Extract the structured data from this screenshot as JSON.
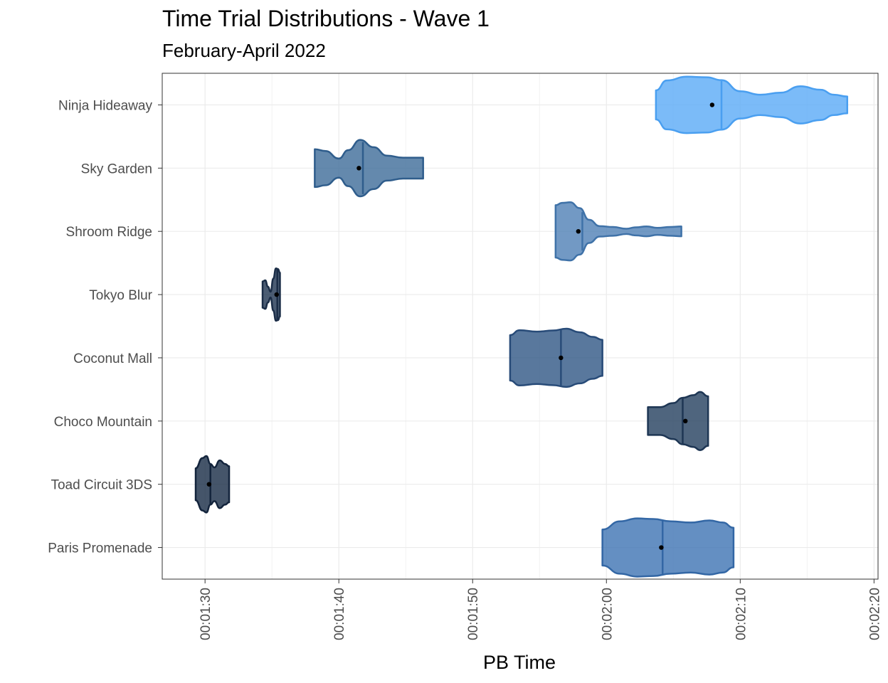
{
  "chart_data": {
    "type": "violin",
    "title": "Time Trial Distributions - Wave 1",
    "subtitle": "February-April 2022",
    "xlabel": "PB Time",
    "ylabel": "",
    "x_ticks": [
      "00:01:30",
      "00:01:40",
      "00:01:50",
      "00:02:00",
      "00:02:10",
      "00:02:20"
    ],
    "xlim_seconds": [
      86.8,
      140.3
    ],
    "grid": true,
    "legend": "none",
    "categories": [
      "Ninja Hideaway",
      "Sky Garden",
      "Shroom Ridge",
      "Tokyo Blur",
      "Coconut Mall",
      "Choco Mountain",
      "Toad Circuit 3DS",
      "Paris Promenade"
    ],
    "tracks": [
      {
        "name": "Ninja Hideaway",
        "min": 123.7,
        "max": 138.0,
        "median": 128.6,
        "mean": 127.9,
        "fill": "#5aaaf6",
        "stroke": "#4a9ff0",
        "opacity": 0.8,
        "density": [
          [
            123.7,
            0.5
          ],
          [
            124.5,
            0.84
          ],
          [
            126.0,
            0.97
          ],
          [
            127.5,
            0.95
          ],
          [
            128.6,
            0.85
          ],
          [
            130.0,
            0.47
          ],
          [
            131.5,
            0.35
          ],
          [
            133.0,
            0.42
          ],
          [
            134.5,
            0.64
          ],
          [
            136.0,
            0.52
          ],
          [
            137.0,
            0.35
          ],
          [
            138.0,
            0.29
          ]
        ]
      },
      {
        "name": "Sky Garden",
        "min": 98.2,
        "max": 106.3,
        "median": 101.8,
        "mean": 101.5,
        "fill": "#3d6b99",
        "stroke": "#2f5d8c",
        "opacity": 0.8,
        "density": [
          [
            98.2,
            0.65
          ],
          [
            99.0,
            0.59
          ],
          [
            100.0,
            0.33
          ],
          [
            100.7,
            0.62
          ],
          [
            101.6,
            0.97
          ],
          [
            102.6,
            0.72
          ],
          [
            103.6,
            0.43
          ],
          [
            104.8,
            0.36
          ],
          [
            106.3,
            0.36
          ]
        ]
      },
      {
        "name": "Shroom Ridge",
        "min": 116.2,
        "max": 125.6,
        "median": 118.2,
        "mean": 117.9,
        "fill": "#4f80b5",
        "stroke": "#3f72a8",
        "opacity": 0.8,
        "density": [
          [
            116.2,
            0.9
          ],
          [
            116.7,
            0.98
          ],
          [
            117.3,
            1.0
          ],
          [
            118.0,
            0.8
          ],
          [
            118.7,
            0.4
          ],
          [
            119.5,
            0.18
          ],
          [
            120.5,
            0.15
          ],
          [
            121.5,
            0.09
          ],
          [
            122.2,
            0.14
          ],
          [
            123.0,
            0.17
          ],
          [
            123.8,
            0.12
          ],
          [
            124.8,
            0.15
          ],
          [
            125.6,
            0.17
          ]
        ]
      },
      {
        "name": "Tokyo Blur",
        "min": 94.3,
        "max": 95.6,
        "median": 95.4,
        "mean": 95.35,
        "fill": "#1e3350",
        "stroke": "#1b2d47",
        "opacity": 0.8,
        "density": [
          [
            94.3,
            0.45
          ],
          [
            94.5,
            0.49
          ],
          [
            94.7,
            0.27
          ],
          [
            94.9,
            0.1
          ],
          [
            95.1,
            0.55
          ],
          [
            95.3,
            0.9
          ],
          [
            95.45,
            0.88
          ],
          [
            95.6,
            0.75
          ]
        ]
      },
      {
        "name": "Coconut Mall",
        "min": 112.8,
        "max": 119.7,
        "median": 116.6,
        "mean": 116.6,
        "fill": "#2f5684",
        "stroke": "#284b78",
        "opacity": 0.8,
        "density": [
          [
            112.8,
            0.78
          ],
          [
            113.5,
            0.95
          ],
          [
            114.8,
            0.9
          ],
          [
            116.0,
            0.94
          ],
          [
            117.0,
            1.0
          ],
          [
            118.0,
            0.88
          ],
          [
            119.0,
            0.72
          ],
          [
            119.7,
            0.62
          ]
        ]
      },
      {
        "name": "Choco Mountain",
        "min": 123.1,
        "max": 127.6,
        "median": 125.7,
        "mean": 125.9,
        "fill": "#233e5e",
        "stroke": "#1e3654",
        "opacity": 0.8,
        "density": [
          [
            123.1,
            0.48
          ],
          [
            124.0,
            0.48
          ],
          [
            125.0,
            0.62
          ],
          [
            125.7,
            0.8
          ],
          [
            126.5,
            0.89
          ],
          [
            127.0,
            1.0
          ],
          [
            127.6,
            0.85
          ]
        ]
      },
      {
        "name": "Toad Circuit 3DS",
        "min": 89.3,
        "max": 91.8,
        "median": 90.4,
        "mean": 90.3,
        "fill": "#162a45",
        "stroke": "#13243c",
        "opacity": 0.8,
        "density": [
          [
            89.3,
            0.55
          ],
          [
            89.8,
            0.9
          ],
          [
            90.1,
            0.97
          ],
          [
            90.4,
            0.7
          ],
          [
            90.7,
            0.58
          ],
          [
            91.1,
            0.82
          ],
          [
            91.5,
            0.7
          ],
          [
            91.8,
            0.62
          ]
        ]
      },
      {
        "name": "Paris Promenade",
        "min": 119.7,
        "max": 129.5,
        "median": 124.2,
        "mean": 124.1,
        "fill": "#3d73b3",
        "stroke": "#3367a5",
        "opacity": 0.8,
        "density": [
          [
            119.7,
            0.62
          ],
          [
            121.0,
            0.9
          ],
          [
            122.3,
            1.0
          ],
          [
            123.5,
            0.98
          ],
          [
            124.8,
            0.9
          ],
          [
            126.3,
            0.86
          ],
          [
            127.7,
            0.93
          ],
          [
            128.7,
            0.86
          ],
          [
            129.5,
            0.68
          ]
        ]
      }
    ]
  }
}
